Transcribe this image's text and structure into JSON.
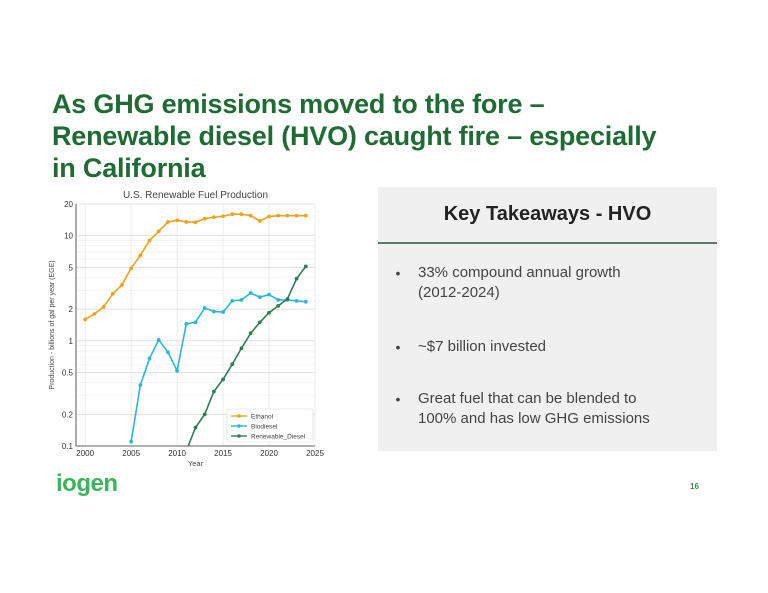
{
  "slide": {
    "title_lines": [
      "As GHG emissions moved to the fore –",
      "Renewable diesel (HVO) caught fire – especially",
      "in California"
    ],
    "logo_text": "iogen",
    "page_number": "16",
    "colors": {
      "title": "#1f6b34",
      "logo": "#3cb55a",
      "panel_bg": "#f0f0f0",
      "panel_rule": "#5a7a6a"
    }
  },
  "takeaways": {
    "heading": "Key Takeaways - HVO",
    "bullet_glyph": "•",
    "items": [
      {
        "line1": "33% compound annual growth",
        "line2": "(2012-2024)"
      },
      {
        "line1": "~$7 billion invested",
        "line2": ""
      },
      {
        "line1": "Great fuel that can be blended to",
        "line2": "100% and has low GHG emissions"
      }
    ]
  },
  "chart_data": {
    "type": "line",
    "title": "U.S. Renewable Fuel Production",
    "xlabel": "Year",
    "ylabel": "Production - billions of gal per year (EGE)",
    "yscale": "log",
    "xlim": [
      1999,
      2025
    ],
    "ylim": [
      0.1,
      20
    ],
    "xticks": [
      2000,
      2005,
      2010,
      2015,
      2020,
      2025
    ],
    "yticks": [
      0.1,
      0.2,
      0.5,
      1,
      2,
      5,
      10,
      20
    ],
    "ytick_labels": [
      "0.1",
      "0.2",
      "0.5",
      "1",
      "2",
      "5",
      "10",
      "20"
    ],
    "grid": true,
    "legend_position": "lower right",
    "series": [
      {
        "name": "Ethanol",
        "color": "#f0a21c",
        "x": [
          2000,
          2001,
          2002,
          2003,
          2004,
          2005,
          2006,
          2007,
          2008,
          2009,
          2010,
          2011,
          2012,
          2013,
          2014,
          2015,
          2016,
          2017,
          2018,
          2019,
          2020,
          2021,
          2022,
          2023,
          2024
        ],
        "values": [
          1.6,
          1.8,
          2.1,
          2.8,
          3.4,
          4.9,
          6.5,
          9.0,
          11.0,
          13.5,
          14.0,
          13.5,
          13.4,
          14.5,
          15.0,
          15.3,
          16.0,
          16.0,
          15.5,
          13.8,
          15.2,
          15.5,
          15.5,
          15.5,
          15.5
        ]
      },
      {
        "name": "Biodiesel",
        "color": "#28b8dc",
        "x": [
          2005,
          2006,
          2007,
          2008,
          2009,
          2010,
          2011,
          2012,
          2013,
          2014,
          2015,
          2016,
          2017,
          2018,
          2019,
          2020,
          2021,
          2022,
          2023,
          2024
        ],
        "values": [
          0.11,
          0.38,
          0.68,
          1.02,
          0.78,
          0.52,
          1.45,
          1.5,
          2.05,
          1.9,
          1.88,
          2.4,
          2.45,
          2.85,
          2.6,
          2.75,
          2.45,
          2.45,
          2.4,
          2.35
        ]
      },
      {
        "name": "Renewable_Diesel",
        "color": "#2e7d57",
        "x": [
          2011,
          2012,
          2013,
          2014,
          2015,
          2016,
          2017,
          2018,
          2019,
          2020,
          2021,
          2022,
          2023,
          2024
        ],
        "values": [
          0.09,
          0.15,
          0.2,
          0.33,
          0.43,
          0.6,
          0.85,
          1.18,
          1.5,
          1.85,
          2.15,
          2.5,
          3.9,
          5.1
        ]
      }
    ]
  }
}
